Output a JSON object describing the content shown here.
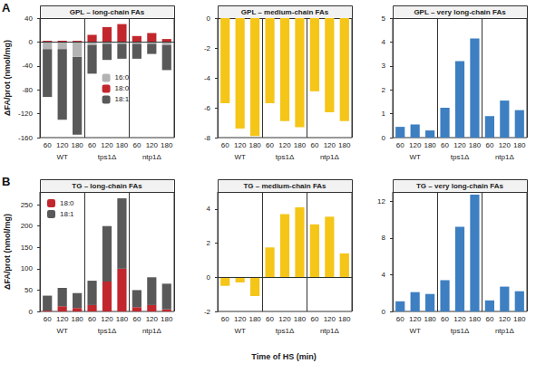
{
  "chart_data": [
    {
      "type": "bar",
      "title": "GPL – long-chain FAs",
      "panel": "A",
      "ylabel": "ΔFA/prot (nmol/mg)",
      "categories": [
        "60",
        "120",
        "180",
        "60",
        "120",
        "180",
        "60",
        "120",
        "180"
      ],
      "groups": [
        "WT",
        "tps1Δ",
        "ntp1Δ"
      ],
      "series": [
        {
          "name": "16:0",
          "color": "#b3b3b3",
          "values": [
            -12,
            -12,
            -25,
            -5,
            -3,
            -3,
            -3,
            -3,
            -5
          ]
        },
        {
          "name": "18:0",
          "color": "#c1272d",
          "values": [
            2,
            2,
            2,
            12,
            25,
            30,
            10,
            15,
            5
          ]
        },
        {
          "name": "18:1",
          "color": "#595959",
          "values": [
            -80,
            -118,
            -130,
            -48,
            -27,
            -25,
            -25,
            -17,
            -42
          ]
        }
      ],
      "stacked": true,
      "legend": "center",
      "ylim": [
        -160,
        40
      ],
      "yticks": [
        -160,
        -120,
        -80,
        -40,
        0,
        40
      ],
      "grid": false
    },
    {
      "type": "bar",
      "title": "GPL – medium-chain FAs",
      "categories": [
        "60",
        "120",
        "180",
        "60",
        "120",
        "180",
        "60",
        "120",
        "180"
      ],
      "groups": [
        "WT",
        "tps1Δ",
        "ntp1Δ"
      ],
      "values": [
        -5.7,
        -7.4,
        -7.9,
        -5.7,
        -6.9,
        -7.3,
        -4.9,
        -6.3,
        -6.9
      ],
      "color": "#f5c518",
      "ylim": [
        -8,
        0
      ],
      "yticks": [
        -8,
        -6,
        -4,
        -2,
        0
      ],
      "grid": false
    },
    {
      "type": "bar",
      "title": "GPL – very long-chain FAs",
      "categories": [
        "60",
        "120",
        "180",
        "60",
        "120",
        "180",
        "60",
        "120",
        "180"
      ],
      "groups": [
        "WT",
        "tps1Δ",
        "ntp1Δ"
      ],
      "values": [
        0.45,
        0.55,
        0.3,
        1.25,
        3.2,
        4.15,
        0.9,
        1.55,
        1.15
      ],
      "color": "#3d7fc1",
      "ylim": [
        0,
        5
      ],
      "yticks": [
        0,
        1,
        2,
        3,
        4,
        5
      ],
      "grid": false
    },
    {
      "type": "bar",
      "title": "TG – long-chain FAs",
      "panel": "B",
      "ylabel": "ΔFA/prot (nmol/mg)",
      "categories": [
        "60",
        "120",
        "180",
        "60",
        "120",
        "180",
        "60",
        "120",
        "180"
      ],
      "groups": [
        "WT",
        "tps1Δ",
        "ntp1Δ"
      ],
      "series": [
        {
          "name": "18:0",
          "color": "#c1272d",
          "values": [
            2,
            12,
            8,
            15,
            70,
            100,
            10,
            15,
            5
          ]
        },
        {
          "name": "18:1",
          "color": "#595959",
          "values": [
            35,
            43,
            35,
            57,
            130,
            165,
            40,
            65,
            60
          ]
        }
      ],
      "stacked": true,
      "legend": "top left",
      "ylim": [
        0,
        280
      ],
      "yticks": [
        0,
        50,
        100,
        150,
        200,
        250
      ],
      "grid": false
    },
    {
      "type": "bar",
      "title": "TG – medium-chain FAs",
      "categories": [
        "60",
        "120",
        "180",
        "60",
        "120",
        "180",
        "60",
        "120",
        "180"
      ],
      "groups": [
        "WT",
        "tps1Δ",
        "ntp1Δ"
      ],
      "values": [
        -0.5,
        -0.3,
        -1.1,
        1.75,
        3.7,
        4.1,
        3.1,
        3.55,
        1.4
      ],
      "color": "#f5c518",
      "ylim": [
        -2,
        5
      ],
      "yticks": [
        -2,
        0,
        2,
        4
      ],
      "grid": false
    },
    {
      "type": "bar",
      "title": "TG – very long-chain FAs",
      "categories": [
        "60",
        "120",
        "180",
        "60",
        "120",
        "180",
        "60",
        "120",
        "180"
      ],
      "groups": [
        "WT",
        "tps1Δ",
        "ntp1Δ"
      ],
      "values": [
        1.1,
        2.1,
        1.9,
        3.4,
        9.2,
        12.7,
        1.2,
        2.7,
        2.2
      ],
      "color": "#3d7fc1",
      "ylim": [
        0,
        13
      ],
      "yticks": [
        0,
        4,
        8,
        12
      ],
      "grid": false
    }
  ],
  "xlabel": "Time of HS (min)"
}
